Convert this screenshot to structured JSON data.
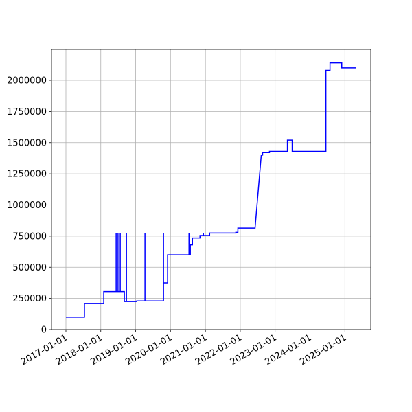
{
  "chart_data": {
    "type": "line",
    "x": [
      "2017-01-01",
      "2017-07-14",
      "2017-07-14",
      "2018-02-01",
      "2018-02-01",
      "2018-06-11",
      "2018-06-11",
      "2018-06-11",
      "2018-06-25",
      "2018-06-25",
      "2018-06-25",
      "2018-07-10",
      "2018-07-10",
      "2018-07-10",
      "2018-07-24",
      "2018-07-24",
      "2018-07-24",
      "2018-09-05",
      "2018-09-05",
      "2018-09-27",
      "2018-09-27",
      "2018-09-27",
      "2019-01-13",
      "2019-01-13",
      "2019-04-09",
      "2019-04-09",
      "2019-04-09",
      "2019-10-20",
      "2019-10-20",
      "2019-10-20",
      "2019-12-02",
      "2019-12-02",
      "2020-07-13",
      "2020-07-13",
      "2020-07-13",
      "2020-07-27",
      "2020-07-27",
      "2020-08-18",
      "2020-08-18",
      "2020-11-05",
      "2020-11-05",
      "2020-12-11",
      "2020-12-11",
      "2020-12-11",
      "2021-02-14",
      "2021-02-14",
      "2021-11-15",
      "2021-11-15",
      "2021-12-07",
      "2021-12-07",
      "2022-06-05",
      "2022-08-09",
      "2022-08-23",
      "2022-08-23",
      "2022-11-03",
      "2022-11-03",
      "2023-05-10",
      "2023-05-10",
      "2023-06-29",
      "2023-06-29",
      "2024-06-16",
      "2024-06-16",
      "2024-07-29",
      "2024-07-29",
      "2024-11-29",
      "2024-11-29",
      "2025-04-29"
    ],
    "series": [
      {
        "color": "#0000ff",
        "values": [
          100000,
          100000,
          210000,
          210000,
          305000,
          305000,
          775000,
          305000,
          305000,
          775000,
          305000,
          305000,
          775000,
          305000,
          305000,
          775000,
          305000,
          305000,
          225000,
          225000,
          775000,
          225000,
          225000,
          230000,
          230000,
          775000,
          230000,
          230000,
          775000,
          375000,
          375000,
          600000,
          600000,
          775000,
          600000,
          600000,
          680000,
          680000,
          735000,
          735000,
          755000,
          755000,
          775000,
          755000,
          755000,
          775000,
          775000,
          780000,
          780000,
          815000,
          815000,
          1400000,
          1400000,
          1420000,
          1420000,
          1430000,
          1430000,
          1520000,
          1520000,
          1430000,
          1430000,
          2080000,
          2080000,
          2140000,
          2140000,
          2100000,
          2100000
        ]
      }
    ],
    "xlim": [
      "2016-08-03",
      "2025-09-29"
    ],
    "xticks": [
      "2017-01-01",
      "2018-01-01",
      "2019-01-01",
      "2020-01-01",
      "2021-01-01",
      "2022-01-01",
      "2023-01-01",
      "2024-01-01",
      "2025-01-01"
    ],
    "ylim": [
      0,
      2248000
    ],
    "yticks": [
      0,
      250000,
      500000,
      750000,
      1000000,
      1250000,
      1500000,
      1750000,
      2000000
    ],
    "grid": true
  }
}
